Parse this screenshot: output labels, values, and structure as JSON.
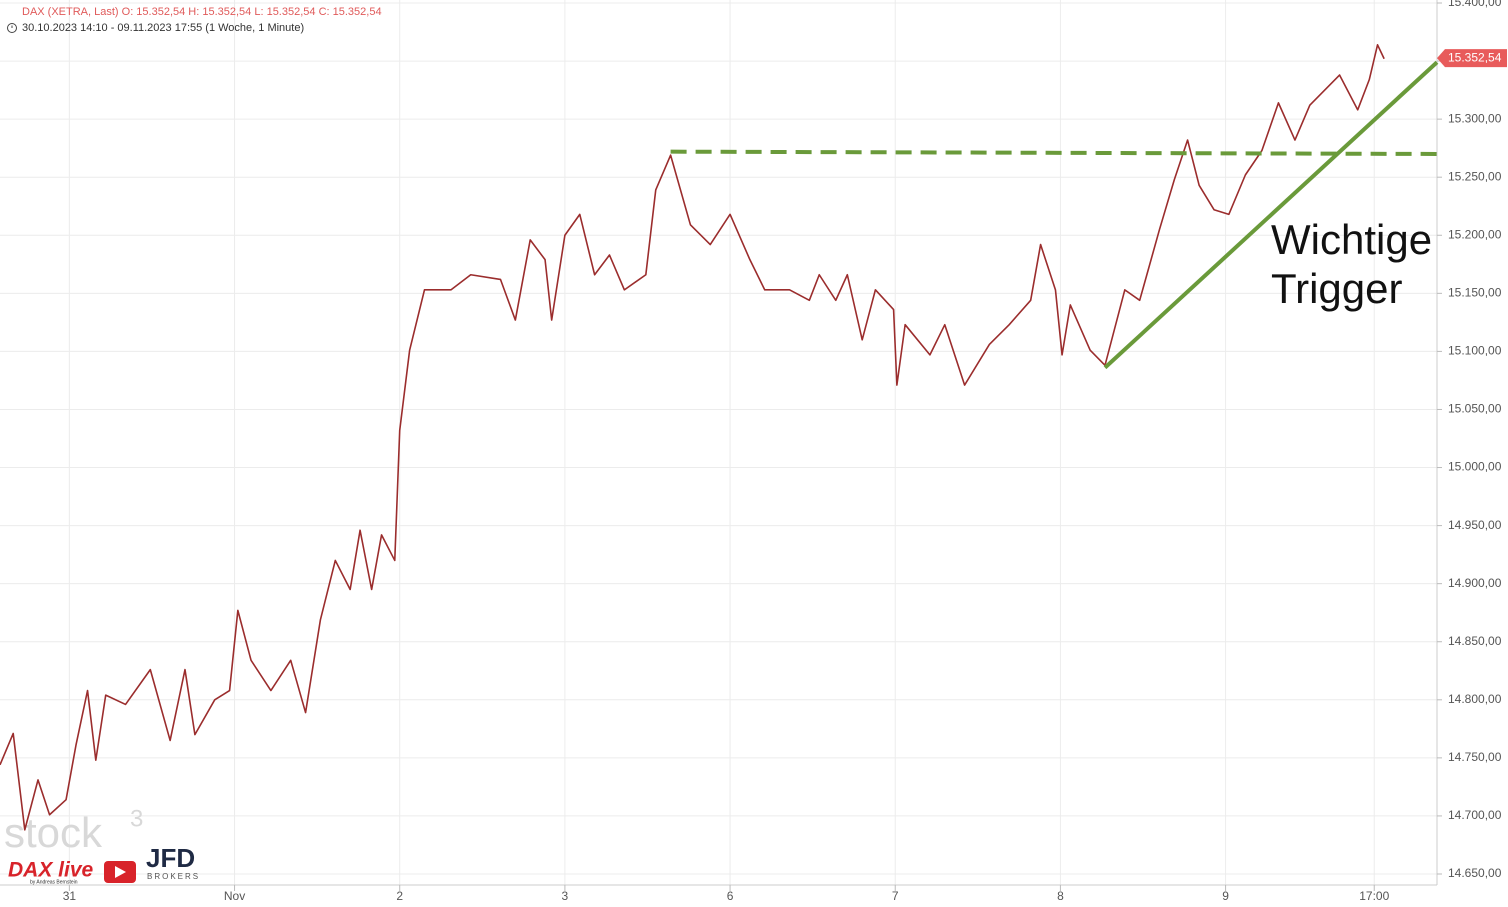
{
  "chart_data": {
    "type": "line",
    "title": "DAX (XETRA, Last)  O: 15.352,54  H: 15.352,54  L: 15.352,54  C: 15.352,54",
    "subtitle": "30.10.2023 14:10 - 09.11.2023 17:55   (1 Woche, 1 Minute)",
    "x": [
      -0.42,
      -0.34,
      -0.27,
      -0.19,
      -0.12,
      -0.02,
      0.04,
      0.11,
      0.16,
      0.22,
      0.34,
      0.49,
      0.61,
      0.7,
      0.76,
      0.88,
      0.97,
      1.02,
      1.1,
      1.22,
      1.34,
      1.43,
      1.52,
      1.61,
      1.7,
      1.76,
      1.83,
      1.89,
      1.97,
      2.0,
      2.06,
      2.15,
      2.31,
      2.43,
      2.61,
      2.7,
      2.79,
      2.88,
      2.92,
      3.0,
      3.09,
      3.18,
      3.27,
      3.36,
      3.49,
      3.55,
      3.64,
      3.76,
      3.88,
      4.0,
      4.12,
      4.21,
      4.36,
      4.48,
      4.54,
      4.64,
      4.71,
      4.8,
      4.88,
      4.99,
      5.01,
      5.06,
      5.21,
      5.3,
      5.42,
      5.57,
      5.69,
      5.82,
      5.88,
      5.97,
      6.01,
      6.06,
      6.18,
      6.27,
      6.39,
      6.48,
      6.6,
      6.69,
      6.77,
      6.84,
      6.93,
      7.02,
      7.12,
      7.22,
      7.32,
      7.42,
      7.51,
      7.69,
      7.8,
      7.87,
      7.92,
      7.96
    ],
    "series": [
      {
        "name": "DAX",
        "color": "#9b2d2d",
        "values": [
          14744,
          14771,
          14688,
          14731,
          14701,
          14714,
          14761,
          14808,
          14748,
          14804,
          14796,
          14826,
          14765,
          14826,
          14770,
          14800,
          14808,
          14877,
          14834,
          14808,
          14834,
          14789,
          14869,
          14920,
          14895,
          14946,
          14895,
          14942,
          14920,
          15032,
          15101,
          15153,
          15153,
          15166,
          15162,
          15127,
          15196,
          15179,
          15127,
          15200,
          15218,
          15166,
          15183,
          15153,
          15166,
          15239,
          15269,
          15209,
          15192,
          15218,
          15179,
          15153,
          15153,
          15144,
          15166,
          15144,
          15166,
          15110,
          15153,
          15136,
          15071,
          15123,
          15097,
          15123,
          15071,
          15106,
          15123,
          15144,
          15192,
          15153,
          15097,
          15140,
          15101,
          15088,
          15153,
          15144,
          15205,
          15248,
          15282,
          15243,
          15222,
          15218,
          15252,
          15273,
          15314,
          15282,
          15312,
          15338,
          15308,
          15334,
          15364,
          15352
        ]
      }
    ],
    "xlim": [
      -0.42,
      8.28
    ],
    "ylim": [
      14650,
      15400
    ],
    "xticks": [
      {
        "value": 0,
        "label": "31"
      },
      {
        "value": 1,
        "label": "Nov"
      },
      {
        "value": 2,
        "label": "2"
      },
      {
        "value": 3,
        "label": "3"
      },
      {
        "value": 4,
        "label": "6"
      },
      {
        "value": 5,
        "label": "7"
      },
      {
        "value": 6,
        "label": "8"
      },
      {
        "value": 7,
        "label": "9"
      },
      {
        "value": 7.9,
        "label": "17:00"
      }
    ],
    "yticks": [
      {
        "value": 14650,
        "label": "14.650,00"
      },
      {
        "value": 14700,
        "label": "14.700,00"
      },
      {
        "value": 14750,
        "label": "14.750,00"
      },
      {
        "value": 14800,
        "label": "14.800,00"
      },
      {
        "value": 14850,
        "label": "14.850,00"
      },
      {
        "value": 14900,
        "label": "14.900,00"
      },
      {
        "value": 14950,
        "label": "14.950,00"
      },
      {
        "value": 15000,
        "label": "15.000,00"
      },
      {
        "value": 15050,
        "label": "15.050,00"
      },
      {
        "value": 15100,
        "label": "15.100,00"
      },
      {
        "value": 15150,
        "label": "15.150,00"
      },
      {
        "value": 15200,
        "label": "15.200,00"
      },
      {
        "value": 15250,
        "label": "15.250,00"
      },
      {
        "value": 15300,
        "label": "15.300,00"
      },
      {
        "value": 15350,
        "label": "15.350,00"
      },
      {
        "value": 15400,
        "label": "15.400,00"
      }
    ],
    "grid": true,
    "last_value": 15352.54,
    "last_value_label": "15.352,54",
    "last_value_color": "#e85b5b",
    "resistance": {
      "x": [
        3.64,
        8.28
      ],
      "values": [
        15272,
        15270
      ],
      "color": "#6a9a3a"
    },
    "trendline": {
      "x": [
        6.27,
        8.28
      ],
      "values": [
        15086,
        15349
      ],
      "color": "#6a9a3a"
    },
    "annotation": [
      "Wichtige",
      "Trigger"
    ],
    "logos": {
      "watermark": "stock",
      "watermark_sup": "3",
      "dax_live": "DAX live",
      "byline": "by Andreas Bernstein",
      "jfd": "JFD",
      "brokers": "BROKERS"
    }
  }
}
